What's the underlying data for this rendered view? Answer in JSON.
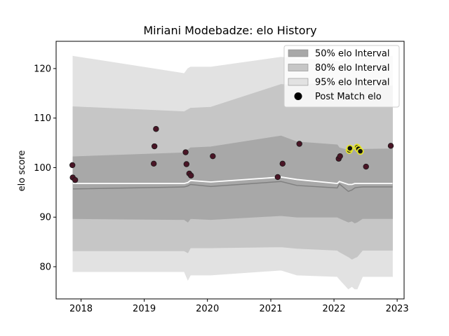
{
  "chart_data": {
    "type": "area",
    "title": "Miriani Modebadze: elo History",
    "xlabel": "",
    "ylabel": "elo score",
    "xlim": [
      "2017-08-10",
      "2023-02-10"
    ],
    "ylim": [
      73.5,
      125.5
    ],
    "x_ticks": [
      "2018",
      "2019",
      "2020",
      "2021",
      "2022",
      "2023"
    ],
    "y_ticks": [
      80,
      90,
      100,
      110,
      120
    ],
    "grid": false,
    "legend_position": "top-right",
    "legend": [
      {
        "label": "50% elo Interval",
        "swatch": "band50"
      },
      {
        "label": "80% elo Interval",
        "swatch": "band80"
      },
      {
        "label": "95% elo Interval",
        "swatch": "band95"
      },
      {
        "label": "Post Match elo",
        "swatch": "marker"
      }
    ],
    "colors": {
      "band50": "#a8a8a8",
      "band80": "#c6c6c6",
      "band95": "#e2e2e2",
      "mean_line": "#ffffff",
      "median_line": "#808080",
      "point_fill": "#4a1526",
      "point_edge": "#1a1a1a",
      "highlight_edge": "#e6e628"
    },
    "x": [
      "2017-11-15",
      "2019-08-20",
      "2019-09-10",
      "2019-09-25",
      "2020-01-20",
      "2021-03-01",
      "2021-06-01",
      "2022-01-20",
      "2022-02-01",
      "2022-03-25",
      "2022-04-15",
      "2022-05-01",
      "2022-05-15",
      "2022-06-15",
      "2022-12-05"
    ],
    "series": [
      {
        "name": "95% elo Interval",
        "lower": [
          79.0,
          79.0,
          77.3,
          78.3,
          78.3,
          79.3,
          78.3,
          78.0,
          77.5,
          75.5,
          76.0,
          75.5,
          75.5,
          78.0,
          78.0
        ],
        "upper": [
          122.5,
          119.0,
          120.0,
          120.3,
          120.3,
          122.3,
          122.0,
          121.5,
          121.3,
          122.0,
          121.5,
          122.0,
          122.0,
          122.0,
          122.5
        ]
      },
      {
        "name": "80% elo Interval",
        "lower": [
          83.2,
          83.2,
          82.8,
          83.8,
          83.8,
          84.0,
          83.7,
          83.3,
          83.0,
          82.0,
          81.5,
          81.8,
          82.0,
          83.3,
          83.3
        ],
        "upper": [
          112.3,
          111.3,
          111.7,
          112.0,
          112.2,
          116.8,
          116.6,
          117.4,
          117.0,
          117.5,
          117.5,
          117.8,
          118.0,
          116.5,
          116.5
        ]
      },
      {
        "name": "50% elo Interval",
        "lower": [
          89.7,
          89.5,
          89.0,
          89.7,
          89.5,
          90.3,
          90.0,
          90.0,
          89.8,
          89.0,
          89.2,
          88.8,
          89.0,
          89.7,
          89.7
        ],
        "upper": [
          102.2,
          103.0,
          103.6,
          104.0,
          104.2,
          106.4,
          105.2,
          104.6,
          104.0,
          103.5,
          103.5,
          103.8,
          104.0,
          103.7,
          103.8
        ]
      },
      {
        "name": "mean",
        "values": [
          96.8,
          96.8,
          97.0,
          97.4,
          97.1,
          98.1,
          97.6,
          96.8,
          97.2,
          96.6,
          96.6,
          96.8,
          96.8,
          96.8,
          96.8
        ]
      },
      {
        "name": "median",
        "values": [
          95.7,
          96.1,
          96.3,
          96.6,
          96.2,
          97.2,
          96.4,
          95.9,
          96.7,
          95.2,
          95.5,
          95.9,
          96.0,
          96.1,
          96.1
        ]
      }
    ],
    "points": [
      {
        "x": "2017-11-12",
        "y": 100.5,
        "highlight": false
      },
      {
        "x": "2017-11-14",
        "y": 98.0,
        "highlight": false
      },
      {
        "x": "2017-11-28",
        "y": 97.5,
        "highlight": false
      },
      {
        "x": "2019-02-25",
        "y": 100.8,
        "highlight": false
      },
      {
        "x": "2019-03-01",
        "y": 104.3,
        "highlight": false
      },
      {
        "x": "2019-03-10",
        "y": 107.8,
        "highlight": false
      },
      {
        "x": "2019-08-28",
        "y": 103.1,
        "highlight": false
      },
      {
        "x": "2019-09-02",
        "y": 100.7,
        "highlight": false
      },
      {
        "x": "2019-09-18",
        "y": 98.8,
        "highlight": false
      },
      {
        "x": "2019-09-28",
        "y": 98.4,
        "highlight": false
      },
      {
        "x": "2020-02-01",
        "y": 102.3,
        "highlight": false
      },
      {
        "x": "2021-02-10",
        "y": 98.1,
        "highlight": false
      },
      {
        "x": "2021-03-10",
        "y": 100.8,
        "highlight": false
      },
      {
        "x": "2021-06-15",
        "y": 104.8,
        "highlight": false
      },
      {
        "x": "2022-01-28",
        "y": 101.8,
        "highlight": false
      },
      {
        "x": "2022-02-05",
        "y": 102.3,
        "highlight": false
      },
      {
        "x": "2022-03-30",
        "y": 103.5,
        "highlight": true
      },
      {
        "x": "2022-04-03",
        "y": 103.9,
        "highlight": true
      },
      {
        "x": "2022-05-15",
        "y": 104.1,
        "highlight": true
      },
      {
        "x": "2022-05-22",
        "y": 103.8,
        "highlight": true
      },
      {
        "x": "2022-06-02",
        "y": 103.3,
        "highlight": true
      },
      {
        "x": "2022-07-05",
        "y": 100.2,
        "highlight": false
      },
      {
        "x": "2022-11-25",
        "y": 104.4,
        "highlight": false
      }
    ]
  }
}
